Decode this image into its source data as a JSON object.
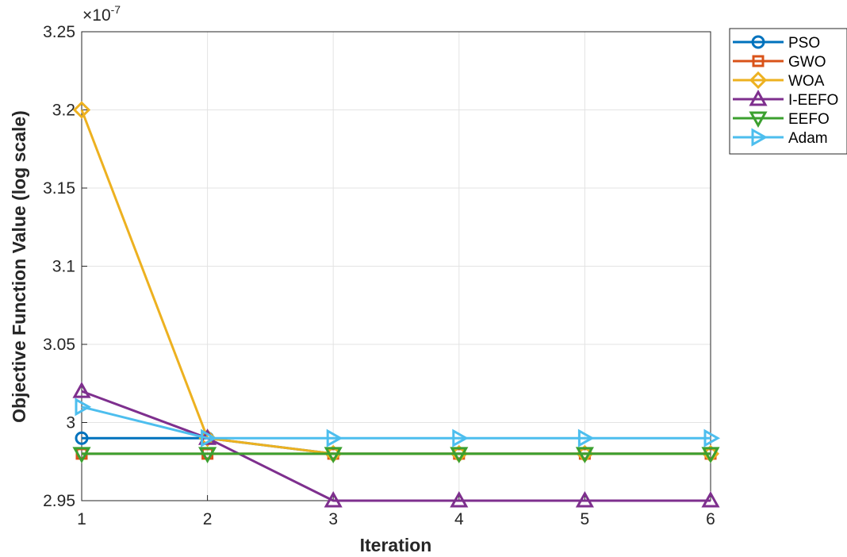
{
  "chart_data": {
    "type": "line",
    "title": "",
    "xlabel": "Iteration",
    "ylabel": "Objective Function Value (log scale)",
    "y_exponent_label": "×10",
    "y_exponent_power": "-7",
    "x": [
      1,
      2,
      3,
      4,
      5,
      6
    ],
    "xlim": [
      1,
      6
    ],
    "ylim": [
      2.95,
      3.25
    ],
    "x_ticks": [
      "1",
      "2",
      "3",
      "4",
      "5",
      "6"
    ],
    "y_ticks": [
      "2.95",
      "3",
      "3.05",
      "3.1",
      "3.15",
      "3.2",
      "3.25"
    ],
    "grid": true,
    "legend_position": "outside top-right",
    "series": [
      {
        "name": "PSO",
        "color": "#0072BD",
        "marker": "circle",
        "values": [
          2.99,
          2.99,
          2.98,
          2.98,
          2.98,
          2.98
        ]
      },
      {
        "name": "GWO",
        "color": "#D95319",
        "marker": "square",
        "values": [
          2.98,
          2.98,
          2.98,
          2.98,
          2.98,
          2.98
        ]
      },
      {
        "name": "WOA",
        "color": "#EDB120",
        "marker": "diamond",
        "values": [
          3.2,
          2.99,
          2.98,
          2.98,
          2.98,
          2.98
        ]
      },
      {
        "name": "I-EEFO",
        "color": "#7E2F8E",
        "marker": "triangle-up",
        "values": [
          3.02,
          2.99,
          2.95,
          2.95,
          2.95,
          2.95
        ]
      },
      {
        "name": "EEFO",
        "color": "#3BA02F",
        "marker": "triangle-down",
        "values": [
          2.98,
          2.98,
          2.98,
          2.98,
          2.98,
          2.98
        ]
      },
      {
        "name": "Adam",
        "color": "#4DBEEE",
        "marker": "triangle-right",
        "values": [
          3.01,
          2.99,
          2.99,
          2.99,
          2.99,
          2.99
        ]
      }
    ]
  }
}
